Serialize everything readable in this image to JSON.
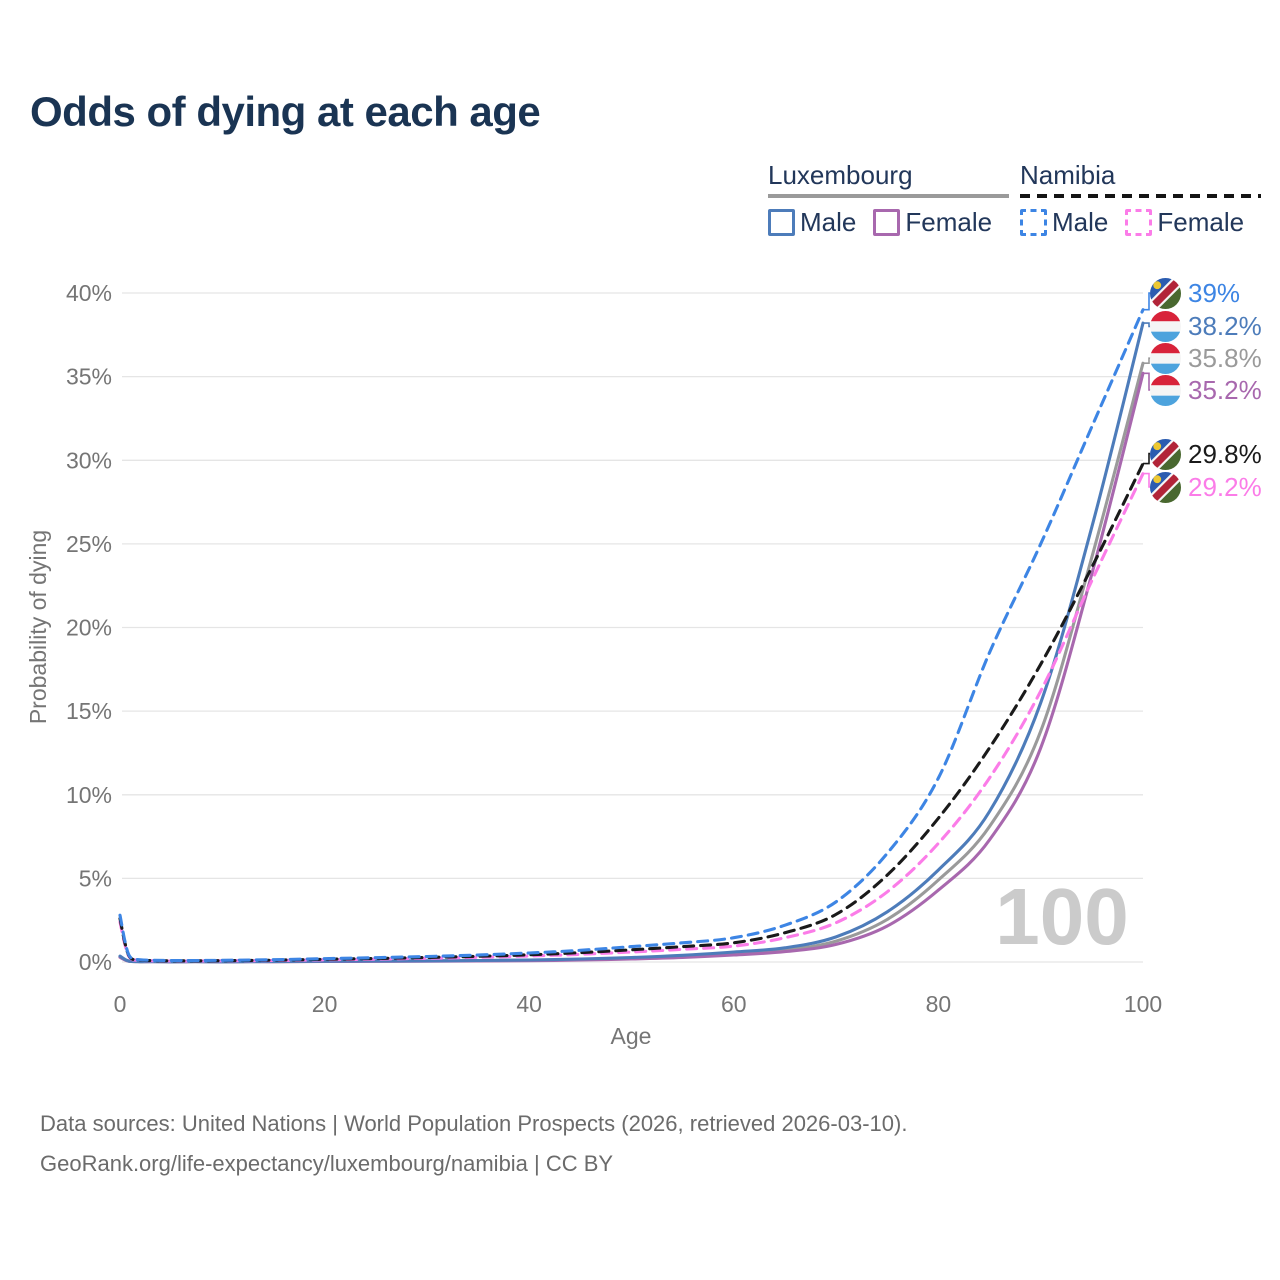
{
  "title": "Odds of dying at each age",
  "legend": {
    "groups": [
      {
        "label": "Luxembourg",
        "underline_style": "solid",
        "underline_color": "#9a9a9a",
        "items": [
          {
            "label": "Male",
            "color": "#4d7cba",
            "dashed": false
          },
          {
            "label": "Female",
            "color": "#a868ae",
            "dashed": false
          }
        ]
      },
      {
        "label": "Namibia",
        "underline_style": "dashed",
        "underline_color": "#141414",
        "items": [
          {
            "label": "Male",
            "color": "#3d85e4",
            "dashed": true
          },
          {
            "label": "Female",
            "color": "#fb7ce8",
            "dashed": true
          }
        ]
      }
    ]
  },
  "chart_data": {
    "type": "line",
    "title": "Odds of dying at each age",
    "xlabel": "Age",
    "ylabel": "Probability of dying",
    "xlim": [
      0,
      100
    ],
    "ylim": [
      0,
      40
    ],
    "x_ticks": [
      0,
      20,
      40,
      60,
      80,
      100
    ],
    "y_ticks": [
      0,
      5,
      10,
      15,
      20,
      25,
      30,
      35,
      40
    ],
    "y_tick_suffix": "%",
    "grid": true,
    "watermark": "100",
    "series": [
      {
        "id": "lux_total",
        "name": "Luxembourg (both sexes)",
        "country": "Luxembourg",
        "flag": "lu",
        "color": "#9a9a9a",
        "dashed": false,
        "end_label": "35.8%",
        "label_at": 36.1,
        "points": [
          [
            0,
            0.32
          ],
          [
            0.5,
            0.13
          ],
          [
            1,
            0.04
          ],
          [
            2,
            0.02
          ],
          [
            5,
            0.01
          ],
          [
            10,
            0.01
          ],
          [
            15,
            0.02
          ],
          [
            20,
            0.04
          ],
          [
            25,
            0.05
          ],
          [
            30,
            0.06
          ],
          [
            35,
            0.08
          ],
          [
            40,
            0.1
          ],
          [
            45,
            0.15
          ],
          [
            50,
            0.22
          ],
          [
            55,
            0.33
          ],
          [
            60,
            0.5
          ],
          [
            65,
            0.72
          ],
          [
            70,
            1.25
          ],
          [
            75,
            2.55
          ],
          [
            80,
            4.9
          ],
          [
            85,
            8.1
          ],
          [
            90,
            13.8
          ],
          [
            95,
            24.2
          ],
          [
            100,
            35.8
          ]
        ]
      },
      {
        "id": "lux_female",
        "name": "Luxembourg Female",
        "country": "Luxembourg",
        "flag": "lu",
        "color": "#a868ae",
        "dashed": false,
        "end_label": "35.2%",
        "label_at": 34.2,
        "points": [
          [
            0,
            0.28
          ],
          [
            0.5,
            0.12
          ],
          [
            1,
            0.03
          ],
          [
            2,
            0.02
          ],
          [
            5,
            0.01
          ],
          [
            10,
            0.01
          ],
          [
            15,
            0.02
          ],
          [
            20,
            0.03
          ],
          [
            25,
            0.04
          ],
          [
            30,
            0.05
          ],
          [
            35,
            0.06
          ],
          [
            40,
            0.08
          ],
          [
            45,
            0.12
          ],
          [
            50,
            0.18
          ],
          [
            55,
            0.27
          ],
          [
            60,
            0.42
          ],
          [
            65,
            0.62
          ],
          [
            70,
            1.05
          ],
          [
            75,
            2.15
          ],
          [
            80,
            4.3
          ],
          [
            85,
            7.3
          ],
          [
            90,
            12.8
          ],
          [
            95,
            23.2
          ],
          [
            100,
            35.2
          ]
        ]
      },
      {
        "id": "lux_male",
        "name": "Luxembourg Male",
        "country": "Luxembourg",
        "flag": "lu",
        "color": "#4d7cba",
        "dashed": false,
        "end_label": "38.2%",
        "label_at": 38.0,
        "points": [
          [
            0,
            0.35
          ],
          [
            0.5,
            0.15
          ],
          [
            1,
            0.04
          ],
          [
            2,
            0.02
          ],
          [
            5,
            0.01
          ],
          [
            10,
            0.01
          ],
          [
            15,
            0.03
          ],
          [
            20,
            0.05
          ],
          [
            25,
            0.06
          ],
          [
            30,
            0.07
          ],
          [
            35,
            0.09
          ],
          [
            40,
            0.12
          ],
          [
            45,
            0.18
          ],
          [
            50,
            0.27
          ],
          [
            55,
            0.4
          ],
          [
            60,
            0.6
          ],
          [
            65,
            0.85
          ],
          [
            70,
            1.5
          ],
          [
            75,
            3.0
          ],
          [
            80,
            5.5
          ],
          [
            85,
            9.0
          ],
          [
            90,
            15.5
          ],
          [
            95,
            26.0
          ],
          [
            100,
            38.2
          ]
        ]
      },
      {
        "id": "nam_female",
        "name": "Namibia Female",
        "country": "Namibia",
        "flag": "na",
        "color": "#fb7ce8",
        "dashed": true,
        "end_label": "29.2%",
        "label_at": 28.4,
        "points": [
          [
            0,
            2.4
          ],
          [
            0.5,
            1.0
          ],
          [
            1,
            0.24
          ],
          [
            2,
            0.1
          ],
          [
            5,
            0.06
          ],
          [
            10,
            0.07
          ],
          [
            15,
            0.09
          ],
          [
            20,
            0.13
          ],
          [
            25,
            0.17
          ],
          [
            30,
            0.22
          ],
          [
            35,
            0.28
          ],
          [
            40,
            0.36
          ],
          [
            45,
            0.46
          ],
          [
            50,
            0.6
          ],
          [
            55,
            0.76
          ],
          [
            60,
            0.95
          ],
          [
            65,
            1.45
          ],
          [
            70,
            2.35
          ],
          [
            75,
            4.2
          ],
          [
            80,
            7.1
          ],
          [
            85,
            11.0
          ],
          [
            90,
            16.2
          ],
          [
            95,
            22.8
          ],
          [
            100,
            29.2
          ]
        ]
      },
      {
        "id": "nam_total",
        "name": "Namibia (both sexes)",
        "country": "Namibia",
        "flag": "na",
        "color": "#1a1a1a",
        "dashed": true,
        "end_label": "29.8%",
        "label_at": 30.4,
        "points": [
          [
            0,
            2.6
          ],
          [
            0.5,
            1.1
          ],
          [
            1,
            0.27
          ],
          [
            2,
            0.11
          ],
          [
            5,
            0.07
          ],
          [
            10,
            0.08
          ],
          [
            15,
            0.11
          ],
          [
            20,
            0.16
          ],
          [
            25,
            0.21
          ],
          [
            30,
            0.27
          ],
          [
            35,
            0.34
          ],
          [
            40,
            0.43
          ],
          [
            45,
            0.56
          ],
          [
            50,
            0.73
          ],
          [
            55,
            0.92
          ],
          [
            60,
            1.15
          ],
          [
            65,
            1.75
          ],
          [
            70,
            2.85
          ],
          [
            75,
            5.2
          ],
          [
            80,
            8.6
          ],
          [
            85,
            12.8
          ],
          [
            90,
            17.8
          ],
          [
            95,
            23.6
          ],
          [
            100,
            29.8
          ]
        ]
      },
      {
        "id": "nam_male",
        "name": "Namibia Male",
        "country": "Namibia",
        "flag": "na",
        "color": "#3d85e4",
        "dashed": true,
        "end_label": "39%",
        "label_at": 40.0,
        "points": [
          [
            0,
            2.8
          ],
          [
            0.5,
            1.2
          ],
          [
            1,
            0.3
          ],
          [
            2,
            0.13
          ],
          [
            5,
            0.09
          ],
          [
            10,
            0.1
          ],
          [
            15,
            0.14
          ],
          [
            20,
            0.2
          ],
          [
            25,
            0.26
          ],
          [
            30,
            0.33
          ],
          [
            35,
            0.42
          ],
          [
            40,
            0.54
          ],
          [
            45,
            0.7
          ],
          [
            50,
            0.92
          ],
          [
            55,
            1.15
          ],
          [
            60,
            1.45
          ],
          [
            65,
            2.2
          ],
          [
            70,
            3.6
          ],
          [
            75,
            6.5
          ],
          [
            80,
            11.0
          ],
          [
            85,
            18.5
          ],
          [
            90,
            25.0
          ],
          [
            95,
            32.0
          ],
          [
            100,
            39.0
          ]
        ]
      }
    ]
  },
  "footer": {
    "line1": "Data sources: United Nations | World Population Prospects (2026, retrieved 2026-03-10).",
    "line2": "GeoRank.org/life-expectancy/luxembourg/namibia | CC BY"
  }
}
